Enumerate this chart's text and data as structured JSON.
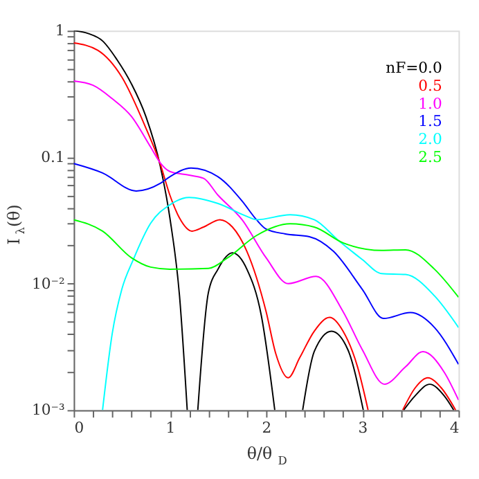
{
  "chart_data": {
    "type": "line",
    "xlabel": "θ/θ$_{D}$",
    "ylabel": "I$_{λ}$(θ)",
    "log": "y",
    "grid": false,
    "legend": "top right",
    "marker": "none",
    "line_style": "solid",
    "xlim": [
      0,
      4
    ],
    "ylim": [
      0.001,
      1
    ],
    "xticks": [
      0,
      {
        "value": 0.2,
        "label": null
      },
      {
        "value": 0.4,
        "label": null
      },
      {
        "value": 0.6,
        "label": null
      },
      {
        "value": 0.8,
        "label": null
      },
      1,
      {
        "value": 1.2,
        "label": null
      },
      {
        "value": 1.4,
        "label": null
      },
      {
        "value": 1.6,
        "label": null
      },
      {
        "value": 1.8,
        "label": null
      },
      2,
      {
        "value": 2.2,
        "label": null
      },
      {
        "value": 2.4,
        "label": null
      },
      {
        "value": 2.6,
        "label": null
      },
      {
        "value": 2.8,
        "label": null
      },
      3,
      {
        "value": 3.2,
        "label": null
      },
      {
        "value": 3.4,
        "label": null
      },
      {
        "value": 3.6,
        "label": null
      },
      {
        "value": 3.8,
        "label": null
      },
      4
    ],
    "yticks": [
      {
        "value": 0.001,
        "label": "10⁻³"
      },
      {
        "value": 0.002,
        "label": null
      },
      {
        "value": 0.003,
        "label": null
      },
      {
        "value": 0.004,
        "label": null
      },
      {
        "value": 0.005,
        "label": null
      },
      {
        "value": 0.006,
        "label": null
      },
      {
        "value": 0.007,
        "label": null
      },
      {
        "value": 0.008,
        "label": null
      },
      {
        "value": 0.009,
        "label": null
      },
      {
        "value": 0.01,
        "label": "10⁻²"
      },
      {
        "value": 0.02,
        "label": null
      },
      {
        "value": 0.03,
        "label": null
      },
      {
        "value": 0.04,
        "label": null
      },
      {
        "value": 0.05,
        "label": null
      },
      {
        "value": 0.06,
        "label": null
      },
      {
        "value": 0.07,
        "label": null
      },
      {
        "value": 0.08,
        "label": null
      },
      {
        "value": 0.09,
        "label": null
      },
      0.1,
      {
        "value": 0.2,
        "label": null
      },
      {
        "value": 0.3,
        "label": null
      },
      {
        "value": 0.4,
        "label": null
      },
      {
        "value": 0.5,
        "label": null
      },
      {
        "value": 0.6,
        "label": null
      },
      {
        "value": 0.7,
        "label": null
      },
      {
        "value": 0.8,
        "label": null
      },
      {
        "value": 0.9,
        "label": null
      },
      1
    ],
    "series": [
      {
        "name": "nF=0.0",
        "color": "#000000",
        "x": [
          0,
          0.15,
          0.3,
          0.45,
          0.6,
          0.75,
          0.9,
          1.0,
          1.1,
          1.18,
          1.2,
          1.29,
          1.4,
          1.5,
          1.65,
          1.8,
          1.95,
          2.09,
          2.2,
          2.38,
          2.5,
          2.68,
          2.85,
          3.01,
          3.2,
          3.43,
          3.55,
          3.7,
          3.85,
          3.95
        ],
        "values": [
          1,
          0.95,
          0.83,
          0.59,
          0.38,
          0.21,
          0.085,
          0.033,
          0.008,
          0.001,
          null,
          0.001,
          0.0085,
          0.013,
          0.0175,
          0.013,
          0.0056,
          0.001,
          null,
          0.001,
          0.0029,
          0.0042,
          0.003,
          0.001,
          null,
          0.001,
          0.0013,
          0.0016,
          0.0013,
          0.001
        ]
      },
      {
        "name": "0.5",
        "color": "#ff0000",
        "x": [
          0,
          0.25,
          0.5,
          0.75,
          0.9,
          1.0,
          1.1,
          1.23,
          1.35,
          1.52,
          1.65,
          1.8,
          2.0,
          2.1,
          2.23,
          2.35,
          2.5,
          2.66,
          2.8,
          2.95,
          3.06,
          3.2,
          3.42,
          3.55,
          3.68,
          3.82,
          3.97
        ],
        "values": [
          0.8,
          0.7,
          0.43,
          0.17,
          0.088,
          0.05,
          0.033,
          0.026,
          0.028,
          0.032,
          0.028,
          0.018,
          0.006,
          0.0028,
          0.0018,
          0.0026,
          0.0042,
          0.0054,
          0.0042,
          0.0022,
          0.001,
          null,
          0.001,
          0.0015,
          0.0018,
          0.0015,
          0.001
        ]
      },
      {
        "name": "1.0",
        "color": "#ff00ff",
        "x": [
          0,
          0.2,
          0.4,
          0.6,
          0.8,
          0.9,
          1.0,
          1.2,
          1.35,
          1.5,
          1.75,
          2.0,
          2.23,
          2.52,
          2.8,
          3.0,
          3.23,
          3.45,
          3.63,
          3.85,
          4.0
        ],
        "values": [
          0.4,
          0.37,
          0.29,
          0.21,
          0.12,
          0.09,
          0.077,
          0.072,
          0.068,
          0.05,
          0.032,
          0.016,
          0.01,
          0.0114,
          0.006,
          0.003,
          0.0016,
          0.0022,
          0.0029,
          0.002,
          0.0012
        ]
      },
      {
        "name": "1.5",
        "color": "#0000ff",
        "x": [
          0,
          0.3,
          0.65,
          0.9,
          1.0,
          1.22,
          1.5,
          1.75,
          1.9,
          2.0,
          2.2,
          2.45,
          2.7,
          3.0,
          3.22,
          3.5,
          3.75,
          4.0
        ],
        "values": [
          0.089,
          0.075,
          0.054,
          0.062,
          0.07,
          0.082,
          0.07,
          0.045,
          0.032,
          0.027,
          0.0247,
          0.0235,
          0.018,
          0.009,
          0.0053,
          0.0059,
          0.0045,
          0.0023
        ]
      },
      {
        "name": "2.0",
        "color": "#00ffff",
        "x": [
          0.3,
          0.4,
          0.5,
          0.62,
          0.8,
          1.0,
          1.2,
          1.5,
          1.8,
          1.9,
          2.25,
          2.5,
          2.75,
          3.0,
          3.2,
          3.45,
          3.75,
          4.0
        ],
        "values": [
          0.001,
          0.004,
          0.009,
          0.0155,
          0.03,
          0.042,
          0.048,
          0.043,
          0.034,
          0.032,
          0.035,
          0.032,
          0.022,
          0.0155,
          0.012,
          0.0118,
          0.008,
          0.0045
        ]
      },
      {
        "name": "2.5",
        "color": "#00ff00",
        "x": [
          0,
          0.3,
          0.6,
          0.8,
          1.0,
          1.4,
          1.6,
          1.9,
          2.25,
          2.5,
          2.8,
          3.2,
          3.45,
          3.75,
          4.0
        ],
        "values": [
          0.032,
          0.026,
          0.016,
          0.0135,
          0.013,
          0.0132,
          0.016,
          0.024,
          0.0297,
          0.028,
          0.021,
          0.0183,
          0.0185,
          0.013,
          0.0078
        ]
      }
    ]
  }
}
